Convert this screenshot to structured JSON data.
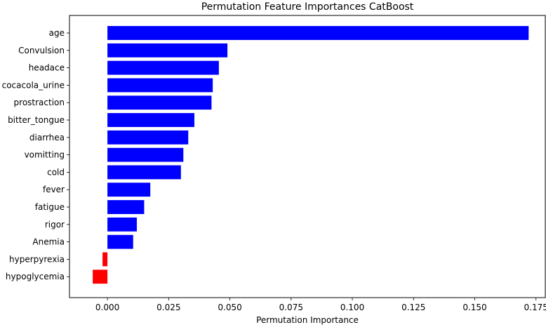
{
  "chart_data": {
    "type": "bar",
    "orientation": "horizontal",
    "title": "Permutation Feature Importances CatBoost",
    "xlabel": "Permutation Importance",
    "ylabel": "",
    "xlim": [
      -0.0155,
      0.1788
    ],
    "x_ticks": [
      "0.000",
      "0.025",
      "0.050",
      "0.075",
      "0.100",
      "0.125",
      "0.150",
      "0.175"
    ],
    "x_tick_values": [
      0,
      0.025,
      0.05,
      0.075,
      0.1,
      0.125,
      0.15,
      0.175
    ],
    "categories": [
      "age",
      "Convulsion",
      "headace",
      "cocacola_urine",
      "prostraction",
      "bitter_tongue",
      "diarrhea",
      "vomitting",
      "cold",
      "fever",
      "fatigue",
      "rigor",
      "Anemia",
      "hyperpyrexia",
      "hypoglycemia"
    ],
    "values": [
      0.172,
      0.049,
      0.0455,
      0.043,
      0.0425,
      0.0355,
      0.033,
      0.031,
      0.03,
      0.0175,
      0.015,
      0.012,
      0.0105,
      -0.002,
      -0.006
    ],
    "bar_heights": [
      0.8,
      0.8,
      0.8,
      0.8,
      0.8,
      0.8,
      0.8,
      0.8,
      0.8,
      0.8,
      0.8,
      0.8,
      0.8,
      0.8,
      0.8
    ],
    "colors": {
      "positive": "#0000ff",
      "negative": "#ff0000"
    },
    "grid": false,
    "legend": "none"
  }
}
